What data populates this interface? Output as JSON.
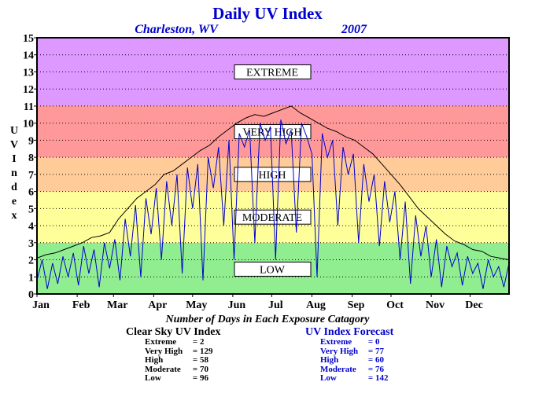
{
  "chart_data": {
    "type": "line",
    "title": "Daily UV Index",
    "location": "Charleston, WV",
    "year": "2007",
    "ylabel": "UV Index",
    "ylim": [
      0,
      15
    ],
    "yticks": [
      "0",
      "1",
      "2",
      "3",
      "4",
      "5",
      "6",
      "7",
      "8",
      "9",
      "10",
      "11",
      "12",
      "13",
      "14",
      "15"
    ],
    "xticks": [
      "Jan",
      "Feb",
      "Mar",
      "Apr",
      "May",
      "Jun",
      "Jul",
      "Aug",
      "Sep",
      "Oct",
      "Nov",
      "Dec"
    ],
    "grid": true,
    "bands": [
      {
        "label": "LOW",
        "from": 0,
        "to": 3,
        "color": "#90ee90"
      },
      {
        "label": "MODERATE",
        "from": 3,
        "to": 6,
        "color": "#ffff99"
      },
      {
        "label": "HIGH",
        "from": 6,
        "to": 8,
        "color": "#ffcc99"
      },
      {
        "label": "VERY HIGH",
        "from": 8,
        "to": 11,
        "color": "#ff9999"
      },
      {
        "label": "EXTREME",
        "from": 11,
        "to": 15,
        "color": "#dd99ff"
      }
    ],
    "series": [
      {
        "name": "Clear Sky UV Index",
        "color": "#000000",
        "x_day": [
          1,
          8,
          15,
          22,
          29,
          36,
          43,
          50,
          57,
          64,
          71,
          78,
          85,
          92,
          99,
          106,
          113,
          120,
          127,
          134,
          141,
          148,
          155,
          162,
          169,
          176,
          183,
          190,
          197,
          204,
          211,
          218,
          225,
          232,
          239,
          246,
          253,
          260,
          267,
          274,
          281,
          288,
          295,
          302,
          309,
          316,
          323,
          330,
          337,
          344,
          351,
          358,
          365
        ],
        "values": [
          2.1,
          2.3,
          2.4,
          2.6,
          2.8,
          3.0,
          3.3,
          3.4,
          3.6,
          4.4,
          5.0,
          5.6,
          6.0,
          6.4,
          7.0,
          7.2,
          7.6,
          8.0,
          8.4,
          8.7,
          9.2,
          9.6,
          10.0,
          10.3,
          10.5,
          10.4,
          10.6,
          10.8,
          11.0,
          10.6,
          10.3,
          10.0,
          9.7,
          9.5,
          9.2,
          9.0,
          8.6,
          8.2,
          7.6,
          7.0,
          6.4,
          5.7,
          5.0,
          4.5,
          4.0,
          3.5,
          3.1,
          2.9,
          2.6,
          2.5,
          2.2,
          2.1,
          2.0
        ]
      },
      {
        "name": "UV Index Forecast",
        "color": "#0000cc",
        "x_day": [
          1,
          5,
          9,
          13,
          17,
          21,
          25,
          29,
          33,
          37,
          41,
          45,
          49,
          53,
          57,
          61,
          65,
          69,
          73,
          77,
          81,
          85,
          89,
          93,
          97,
          101,
          105,
          109,
          113,
          117,
          121,
          125,
          129,
          133,
          137,
          141,
          145,
          149,
          153,
          157,
          161,
          165,
          169,
          173,
          177,
          181,
          185,
          189,
          193,
          197,
          201,
          205,
          209,
          213,
          217,
          221,
          225,
          229,
          233,
          237,
          241,
          245,
          249,
          253,
          257,
          261,
          265,
          269,
          273,
          277,
          281,
          285,
          289,
          293,
          297,
          301,
          305,
          309,
          313,
          317,
          321,
          325,
          329,
          333,
          337,
          341,
          345,
          349,
          353,
          357,
          361,
          365
        ],
        "values": [
          0.8,
          2.0,
          0.3,
          1.8,
          0.6,
          2.2,
          1.0,
          2.4,
          0.5,
          2.8,
          1.2,
          2.6,
          0.4,
          3.0,
          1.5,
          3.2,
          0.8,
          4.4,
          2.2,
          5.2,
          1.0,
          5.6,
          3.5,
          6.2,
          2.0,
          6.6,
          4.0,
          7.0,
          1.2,
          7.4,
          5.0,
          7.6,
          0.8,
          8.0,
          6.2,
          8.6,
          4.0,
          9.0,
          2.0,
          9.4,
          8.6,
          9.6,
          3.0,
          10.0,
          9.0,
          9.8,
          2.0,
          10.2,
          8.8,
          9.6,
          3.6,
          10.0,
          9.2,
          8.2,
          1.0,
          9.4,
          8.0,
          9.0,
          4.0,
          8.6,
          7.0,
          8.2,
          3.0,
          7.6,
          5.4,
          7.0,
          2.8,
          6.6,
          4.2,
          6.0,
          2.0,
          5.4,
          0.6,
          4.6,
          2.2,
          4.0,
          1.0,
          3.2,
          0.4,
          2.8,
          1.6,
          2.4,
          0.5,
          2.2,
          1.2,
          1.8,
          0.3,
          2.0,
          1.0,
          1.6,
          0.4,
          1.8
        ]
      }
    ]
  },
  "caption": "Number of Days in Each Exposure Catagory",
  "clear_sky": {
    "title": "Clear Sky UV Index",
    "rows": [
      {
        "name": "Extreme",
        "sep": "=",
        "value": "2"
      },
      {
        "name": "Very High",
        "sep": "=",
        "value": "129"
      },
      {
        "name": "High",
        "sep": "=",
        "value": "58"
      },
      {
        "name": "Moderate",
        "sep": "=",
        "value": "70"
      },
      {
        "name": "Low",
        "sep": "=",
        "value": "96"
      }
    ]
  },
  "forecast": {
    "title": "UV Index Forecast",
    "rows": [
      {
        "name": "Extreme",
        "sep": "=",
        "value": "0"
      },
      {
        "name": "Very High",
        "sep": "=",
        "value": "77"
      },
      {
        "name": "High",
        "sep": "=",
        "value": "60"
      },
      {
        "name": "Moderate",
        "sep": "=",
        "value": "76"
      },
      {
        "name": "Low",
        "sep": "=",
        "value": "142"
      }
    ]
  }
}
